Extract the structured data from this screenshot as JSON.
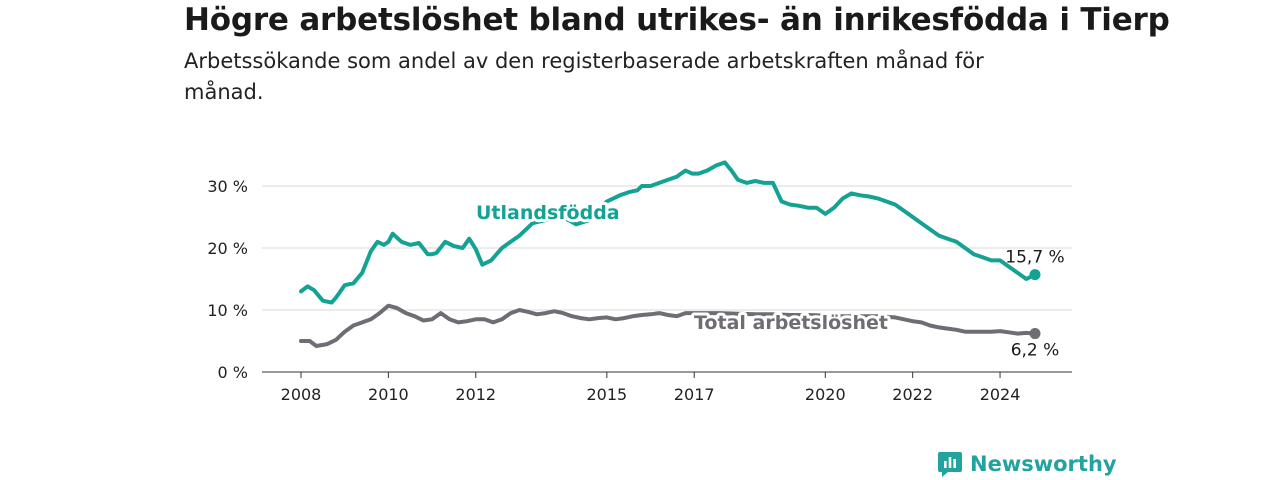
{
  "title": "Högre arbetslöshet bland utrikes- än inrikesfödda i Tierp",
  "subtitle": "Arbetssökande som andel av den registerbaserade arbetskraften månad för månad.",
  "brand": {
    "name": "Newsworthy",
    "color": "#22a3a0"
  },
  "chart_data": {
    "type": "line",
    "title": "Högre arbetslöshet bland utrikes- än inrikesfödda i Tierp",
    "subtitle": "Arbetssökande som andel av den registerbaserade arbetskraften månad för månad.",
    "xlabel": "",
    "ylabel": "",
    "xlim": [
      2008,
      2025.2
    ],
    "ylim": [
      0,
      33
    ],
    "y_ticks": [
      0,
      10,
      20,
      30
    ],
    "y_tick_labels": [
      "0 %",
      "10 %",
      "20 %",
      "30 %"
    ],
    "x_ticks": [
      2008,
      2010,
      2012,
      2015,
      2017,
      2020,
      2022,
      2024
    ],
    "x_tick_labels": [
      "2008",
      "2010",
      "2012",
      "2015",
      "2017",
      "2020",
      "2022",
      "2024"
    ],
    "grid": true,
    "series": [
      {
        "name": "Utlandsfödda",
        "color": "#14a295",
        "end_label": "15,7 %",
        "x": [
          2008.0,
          2008.15,
          2008.3,
          2008.5,
          2008.7,
          2008.8,
          2009.0,
          2009.2,
          2009.4,
          2009.6,
          2009.75,
          2009.9,
          2010.0,
          2010.1,
          2010.3,
          2010.5,
          2010.7,
          2010.9,
          2011.0,
          2011.1,
          2011.3,
          2011.5,
          2011.7,
          2011.85,
          2012.0,
          2012.15,
          2012.35,
          2012.6,
          2012.8,
          2013.0,
          2013.3,
          2013.6,
          2014.0,
          2014.3,
          2014.6,
          2014.8,
          2015.0,
          2015.3,
          2015.5,
          2015.7,
          2015.8,
          2016.0,
          2016.2,
          2016.4,
          2016.6,
          2016.8,
          2016.95,
          2017.1,
          2017.3,
          2017.5,
          2017.7,
          2017.85,
          2018.0,
          2018.2,
          2018.4,
          2018.6,
          2018.8,
          2019.0,
          2019.2,
          2019.4,
          2019.6,
          2019.8,
          2020.0,
          2020.2,
          2020.4,
          2020.6,
          2020.8,
          2021.0,
          2021.2,
          2021.4,
          2021.6,
          2021.8,
          2022.0,
          2022.2,
          2022.4,
          2022.6,
          2022.8,
          2023.0,
          2023.2,
          2023.4,
          2023.6,
          2023.8,
          2024.0,
          2024.2,
          2024.4,
          2024.6,
          2024.8
        ],
        "values": [
          13.0,
          13.8,
          13.2,
          11.5,
          11.2,
          12.0,
          14.0,
          14.3,
          16.0,
          19.5,
          21.0,
          20.5,
          21.0,
          22.3,
          21.0,
          20.5,
          20.8,
          19.0,
          19.0,
          19.2,
          21.0,
          20.3,
          20.0,
          21.5,
          19.8,
          17.3,
          18.0,
          20.0,
          21.0,
          22.0,
          24.0,
          24.5,
          25.0,
          23.8,
          24.5,
          26.0,
          27.5,
          28.5,
          29.0,
          29.3,
          30.0,
          30.0,
          30.5,
          31.0,
          31.5,
          32.5,
          32.0,
          32.0,
          32.5,
          33.3,
          33.8,
          32.5,
          31.0,
          30.5,
          30.8,
          30.5,
          30.5,
          27.5,
          27.0,
          26.8,
          26.5,
          26.5,
          25.5,
          26.5,
          28.0,
          28.8,
          28.5,
          28.3,
          28.0,
          27.5,
          27.0,
          26.0,
          25.0,
          24.0,
          23.0,
          22.0,
          21.5,
          21.0,
          20.0,
          19.0,
          18.5,
          18.0,
          18.0,
          17.0,
          16.0,
          15.0,
          15.7
        ]
      },
      {
        "name": "Total arbetslöshet",
        "color": "#6d6d74",
        "end_label": "6,2 %",
        "x": [
          2008.0,
          2008.2,
          2008.35,
          2008.6,
          2008.8,
          2009.0,
          2009.2,
          2009.4,
          2009.6,
          2009.8,
          2010.0,
          2010.2,
          2010.4,
          2010.6,
          2010.8,
          2011.0,
          2011.2,
          2011.4,
          2011.6,
          2011.8,
          2012.0,
          2012.2,
          2012.4,
          2012.6,
          2012.8,
          2013.0,
          2013.2,
          2013.4,
          2013.6,
          2013.8,
          2014.0,
          2014.2,
          2014.4,
          2014.6,
          2014.8,
          2015.0,
          2015.2,
          2015.4,
          2015.6,
          2015.8,
          2016.0,
          2016.2,
          2016.4,
          2016.6,
          2016.8,
          2017.0,
          2017.3,
          2017.6,
          2018.0,
          2018.4,
          2018.8,
          2019.2,
          2019.6,
          2020.0,
          2020.4,
          2020.8,
          2021.2,
          2021.6,
          2021.8,
          2022.0,
          2022.2,
          2022.4,
          2022.6,
          2022.8,
          2023.0,
          2023.2,
          2023.4,
          2023.6,
          2023.8,
          2024.0,
          2024.2,
          2024.4,
          2024.6,
          2024.8
        ],
        "values": [
          5.0,
          5.0,
          4.2,
          4.5,
          5.2,
          6.5,
          7.5,
          8.0,
          8.5,
          9.5,
          10.7,
          10.3,
          9.5,
          9.0,
          8.3,
          8.5,
          9.5,
          8.5,
          8.0,
          8.2,
          8.5,
          8.5,
          8.0,
          8.5,
          9.5,
          10.0,
          9.7,
          9.3,
          9.5,
          9.8,
          9.5,
          9.0,
          8.7,
          8.5,
          8.7,
          8.8,
          8.5,
          8.7,
          9.0,
          9.2,
          9.3,
          9.5,
          9.2,
          9.0,
          9.5,
          9.5,
          9.5,
          9.5,
          9.4,
          9.3,
          9.3,
          9.2,
          9.2,
          9.1,
          9.0,
          9.0,
          9.0,
          8.8,
          8.5,
          8.2,
          8.0,
          7.5,
          7.2,
          7.0,
          6.8,
          6.5,
          6.5,
          6.5,
          6.5,
          6.6,
          6.4,
          6.2,
          6.3,
          6.2
        ]
      }
    ]
  }
}
